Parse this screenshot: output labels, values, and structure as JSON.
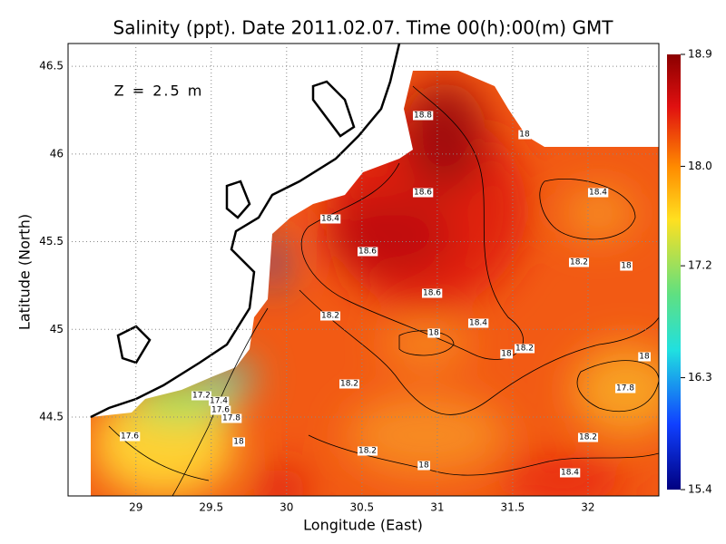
{
  "header": {
    "title": "Salinity (ppt). Date 2011.02.07. Time 00(h):00(m) GMT",
    "annotation": "Z = 2.5 m"
  },
  "x_axis": {
    "label": "Longitude (East)",
    "lim": [
      28.55,
      32.47
    ],
    "ticks": [
      29,
      29.5,
      30,
      30.5,
      31,
      31.5,
      32
    ]
  },
  "y_axis": {
    "label": "Latitude (North)",
    "lim": [
      44.05,
      46.63
    ],
    "ticks": [
      44.5,
      45,
      45.5,
      46,
      46.5
    ]
  },
  "colorbar": {
    "lim": [
      15.4,
      18.9
    ],
    "ticks": [
      18.9,
      {
        "value": 18,
        "label": "18.0"
      },
      17.2,
      16.3,
      15.4
    ]
  },
  "contour_labels": [
    "18.8",
    "18",
    "18.6",
    "18.4",
    "18.4",
    "18.6",
    "18.2",
    "18",
    "18.6",
    "18.2",
    "18.4",
    "18",
    "18.2",
    "18",
    "18",
    "18.2",
    "17.8",
    "17.2",
    "17.4",
    "17.6",
    "17.8",
    "17.6",
    "18",
    "18.2",
    "18.2",
    "18",
    "18.4"
  ]
}
